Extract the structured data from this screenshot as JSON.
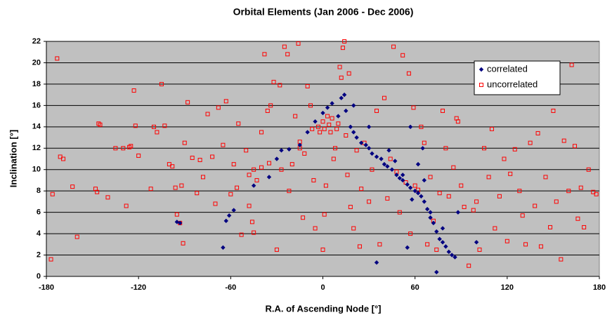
{
  "chart_data": {
    "type": "scatter",
    "title": "Orbital Elements (Jan 2006 - Dec 2006)",
    "xlabel": "R.A. of Ascending Node [°]",
    "ylabel": "Inclination [°]",
    "xlim": [
      -180,
      180
    ],
    "xticks": [
      -180,
      -120,
      -60,
      0,
      60,
      120,
      180
    ],
    "ylim": [
      0,
      22
    ],
    "yticks": [
      0,
      2,
      4,
      6,
      8,
      10,
      12,
      14,
      16,
      18,
      20,
      22
    ],
    "grid": true,
    "legend": "upper right",
    "series": [
      {
        "name": "correlated",
        "color": "#000080",
        "marker": "diamond",
        "x": [
          -95,
          -93,
          -65,
          -63,
          -61,
          -58,
          -45,
          -35,
          -30,
          -27,
          -22,
          -15,
          -10,
          -5,
          0,
          3,
          6,
          10,
          12,
          14,
          15,
          18,
          20,
          22,
          25,
          28,
          30,
          32,
          35,
          38,
          40,
          42,
          45,
          48,
          50,
          52,
          55,
          57,
          60,
          62,
          64,
          66,
          68,
          70,
          72,
          74,
          76,
          78,
          80,
          82,
          84,
          86,
          74,
          35,
          100,
          88,
          55,
          65,
          62,
          57,
          30,
          20,
          43,
          47,
          52,
          58,
          66,
          70,
          78
        ],
        "values": [
          5.1,
          5.0,
          2.7,
          5.2,
          5.7,
          6.2,
          8.5,
          9.3,
          11,
          11.8,
          11.9,
          12.3,
          13.5,
          14.5,
          15.3,
          15.8,
          16.2,
          15,
          16.7,
          17,
          15.5,
          14,
          13.5,
          13,
          12.5,
          12.3,
          12,
          11.5,
          11.2,
          11,
          10.5,
          10.3,
          10,
          9.5,
          9.2,
          9,
          8.6,
          8.3,
          8,
          7.8,
          7.5,
          7,
          6.3,
          5.5,
          5,
          4.2,
          3.5,
          3.2,
          2.8,
          2.3,
          2,
          1.8,
          0.4,
          1.3,
          3.2,
          6,
          2.7,
          12,
          10.5,
          14,
          14,
          16,
          11.8,
          10.8,
          9.5,
          7.2,
          9,
          6,
          4.5
        ]
      },
      {
        "name": "uncorrelated",
        "color": "#ff0000",
        "marker": "square",
        "x": [
          -177,
          -176,
          -173,
          -171,
          -169,
          -163,
          -160,
          -148,
          -147,
          -146,
          -145,
          -140,
          -135,
          -130,
          -128,
          -126,
          -125,
          -123,
          -122,
          -120,
          -112,
          -110,
          -108,
          -105,
          -103,
          -100,
          -98,
          -96,
          -95,
          -93,
          -92,
          -91,
          -90,
          -88,
          -85,
          -82,
          -80,
          -78,
          -75,
          -72,
          -70,
          -68,
          -65,
          -63,
          -60,
          -58,
          -56,
          -55,
          -53,
          -50,
          -48,
          -46,
          -45,
          -43,
          -40,
          -38,
          -36,
          -34,
          -32,
          -30,
          -28,
          -27,
          -25,
          -23,
          -22,
          -20,
          -18,
          -16,
          -15,
          -13,
          -12,
          -10,
          -8,
          -6,
          -5,
          -3,
          -2,
          0,
          1,
          2,
          3,
          4,
          5,
          6,
          7,
          8,
          9,
          10,
          11,
          12,
          13,
          14,
          15,
          16,
          17,
          18,
          20,
          22,
          24,
          25,
          27,
          30,
          32,
          35,
          37,
          40,
          42,
          44,
          46,
          48,
          50,
          52,
          54,
          56,
          57,
          59,
          60,
          62,
          64,
          66,
          68,
          70,
          72,
          74,
          76,
          78,
          80,
          82,
          85,
          87,
          88,
          90,
          92,
          95,
          98,
          100,
          102,
          105,
          108,
          110,
          112,
          115,
          118,
          120,
          122,
          125,
          128,
          130,
          132,
          135,
          138,
          140,
          142,
          145,
          148,
          150,
          152,
          155,
          157,
          160,
          162,
          164,
          166,
          168,
          170,
          173,
          176,
          178,
          0,
          1,
          -45,
          -48,
          -40,
          -35,
          -15,
          -7
        ],
        "values": [
          1.6,
          7.7,
          20.4,
          11.2,
          11,
          8.4,
          3.7,
          8.2,
          7.9,
          14.3,
          14.2,
          7.4,
          12,
          12,
          6.6,
          12.1,
          12.2,
          17.4,
          14.1,
          11.3,
          8.2,
          14,
          13.5,
          18,
          14.1,
          10.5,
          10.3,
          8.3,
          5.8,
          5,
          8.5,
          3.1,
          12.5,
          16.3,
          11.1,
          7.8,
          10.9,
          9.3,
          15.2,
          11.2,
          6.8,
          15.8,
          12.3,
          16.4,
          7.7,
          10.5,
          8.3,
          14.3,
          3.9,
          11.8,
          6.6,
          5.1,
          4.1,
          9,
          13.5,
          20.8,
          15.5,
          16,
          18.2,
          2.5,
          17.9,
          10,
          21.5,
          20.8,
          8,
          10.5,
          15,
          21.8,
          12,
          5.5,
          11.5,
          17.8,
          16,
          9,
          4.5,
          14,
          13.5,
          14.5,
          13.8,
          8.5,
          15,
          14.2,
          13.5,
          14.8,
          11,
          12,
          13.8,
          14.3,
          19.6,
          18.6,
          21.4,
          22,
          13.2,
          9.5,
          19,
          6.5,
          4.5,
          11.8,
          2.8,
          8.2,
          12.5,
          7,
          10,
          15.5,
          3,
          16.7,
          7.3,
          11,
          21.5,
          9.8,
          6,
          20.7,
          8.8,
          19,
          4,
          15.8,
          8.5,
          8.1,
          14,
          12.5,
          3,
          9.3,
          5.2,
          2.5,
          7.8,
          15.5,
          12,
          7.5,
          10.2,
          14.8,
          14.5,
          8.5,
          6.5,
          1,
          6.2,
          7,
          2.5,
          12,
          9.3,
          13.8,
          4.5,
          7.5,
          11,
          3.3,
          9.6,
          11.9,
          8,
          5.7,
          3,
          12.5,
          6.6,
          13.4,
          2.8,
          9.3,
          4.6,
          15.5,
          7,
          1.6,
          12.7,
          8,
          19.8,
          12.2,
          5.4,
          8.3,
          4.6,
          10,
          7.9,
          7.7,
          2.5,
          5.8,
          10,
          9.5,
          10.2,
          10.6,
          12.6,
          13.8
        ]
      }
    ]
  }
}
